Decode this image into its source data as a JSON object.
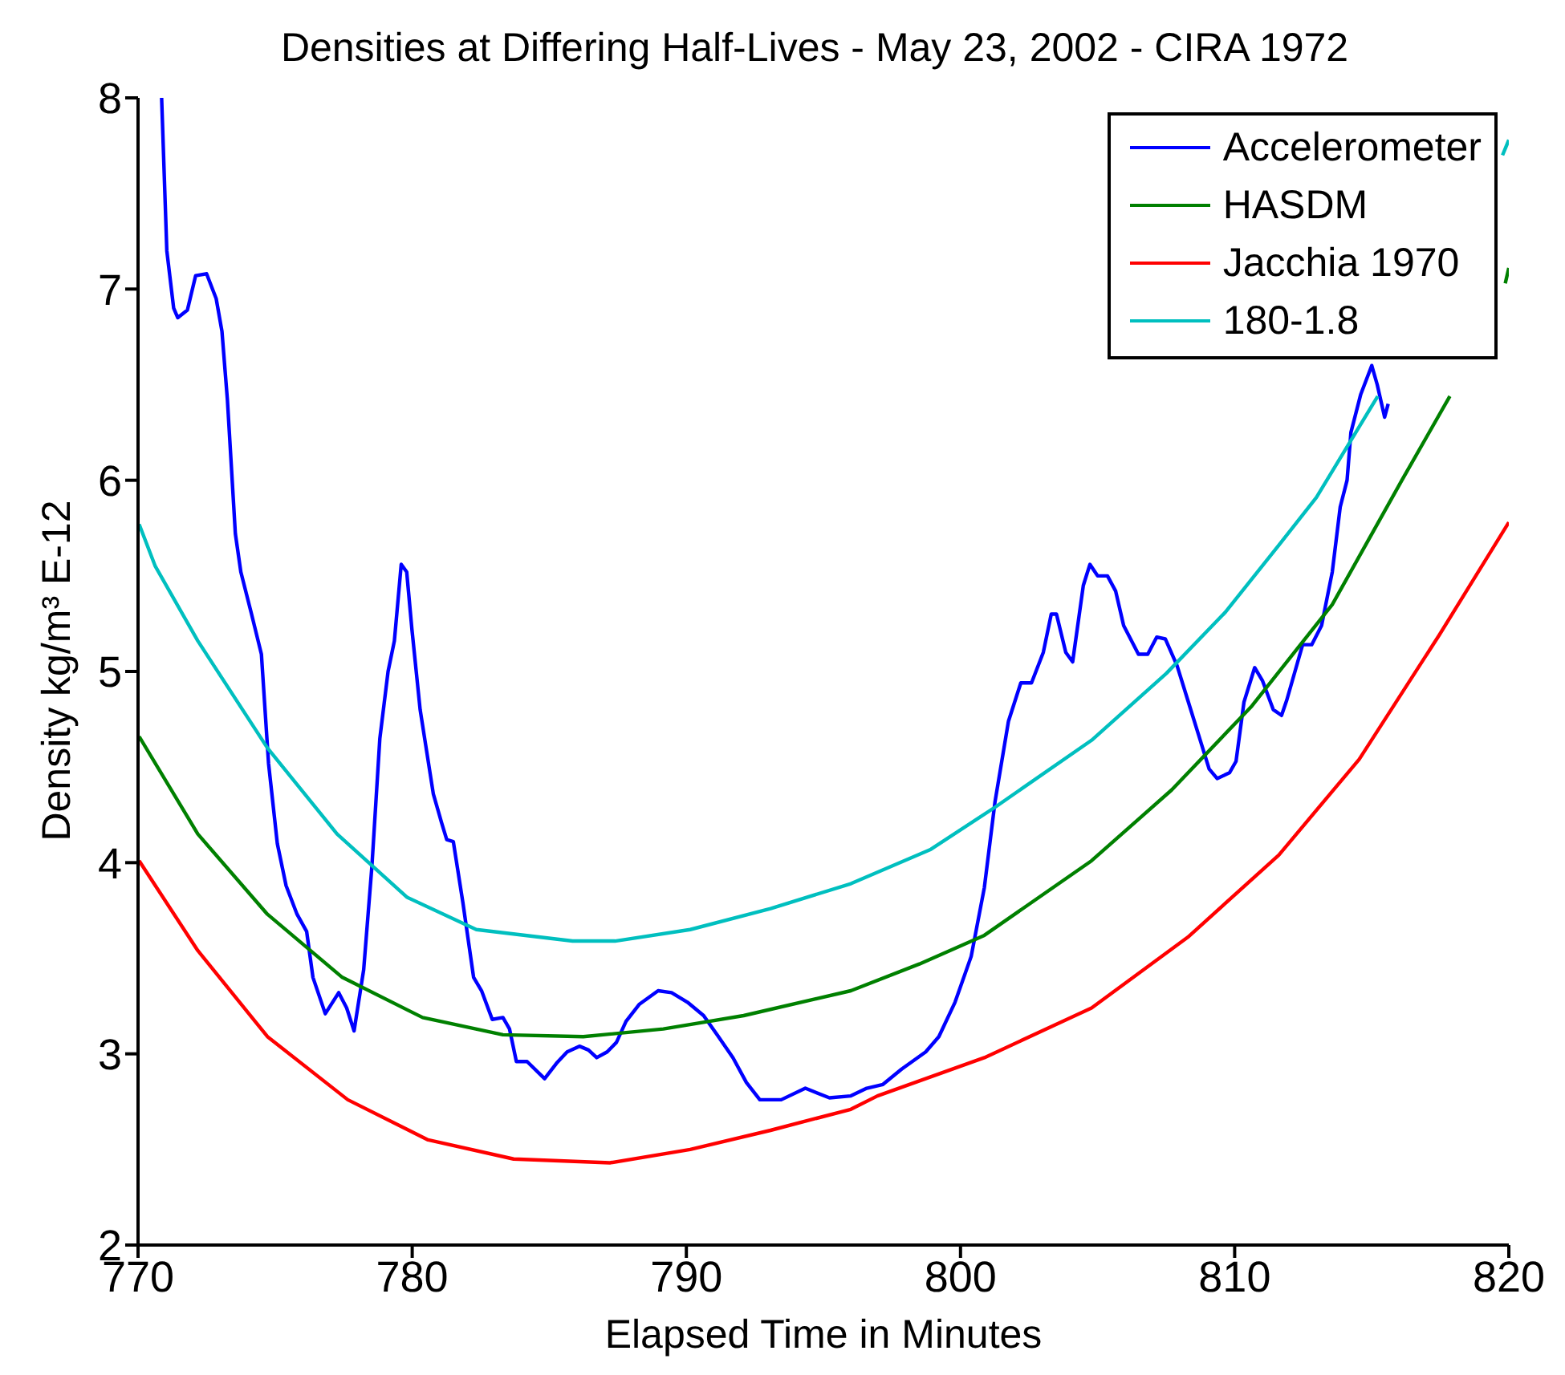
{
  "chart_data": {
    "type": "line",
    "title": "Densities at Differing Half-Lives - May 23, 2002 - CIRA 1972",
    "xlabel": "Elapsed Time in Minutes",
    "ylabel": "Density kg/m³ E-12",
    "xlim": [
      770,
      820
    ],
    "xticks": [
      770,
      780,
      790,
      800,
      810,
      820
    ],
    "ylim": [
      2,
      8
    ],
    "yticks": [
      2,
      3,
      4,
      5,
      6,
      7,
      8
    ],
    "legend": "top right",
    "series": [
      {
        "name": "Accelerometer",
        "color": "#0000ff",
        "x": [
          770.86,
          771.05,
          771.3,
          771.45,
          771.8,
          772.1,
          772.5,
          772.85,
          773.06,
          773.26,
          773.55,
          773.75,
          774.14,
          774.5,
          774.76,
          775.08,
          775.4,
          775.8,
          776.15,
          776.38,
          776.83,
          777.32,
          777.61,
          777.88,
          778.23,
          778.53,
          778.82,
          779.12,
          779.35,
          779.6,
          779.8,
          779.99,
          780.29,
          780.77,
          781.07,
          781.26,
          781.5,
          781.85,
          782.24,
          782.53,
          782.92,
          783.31,
          783.55,
          783.8,
          784.19,
          784.83,
          785.26,
          785.65,
          786.1,
          786.43,
          786.73,
          787.11,
          787.45,
          787.8,
          788.29,
          788.97,
          789.46,
          790.04,
          790.63,
          791.12,
          791.7,
          792.19,
          792.68,
          793.46,
          794.34,
          795.22,
          796.0,
          796.58,
          797.17,
          797.85,
          798.73,
          799.21,
          799.8,
          800.39,
          800.87,
          801.26,
          801.75,
          802.2,
          802.59,
          803.02,
          803.31,
          803.5,
          803.84,
          804.09,
          804.48,
          804.72,
          805.0,
          805.36,
          805.66,
          805.95,
          806.49,
          806.83,
          807.16,
          807.47,
          807.9,
          808.29,
          808.68,
          809.07,
          809.36,
          809.81,
          810.05,
          810.34,
          810.73,
          811.02,
          811.41,
          811.71,
          811.9,
          812.48,
          812.81,
          813.17,
          813.56,
          813.85,
          814.1,
          814.24,
          814.6,
          815.0,
          815.2,
          815.47,
          815.6
        ],
        "values": [
          8.0,
          7.2,
          6.9,
          6.85,
          6.89,
          7.07,
          7.08,
          6.95,
          6.78,
          6.42,
          5.72,
          5.52,
          5.3,
          5.09,
          4.52,
          4.1,
          3.88,
          3.73,
          3.64,
          3.4,
          3.21,
          3.32,
          3.24,
          3.12,
          3.44,
          3.98,
          4.65,
          5.0,
          5.16,
          5.56,
          5.52,
          5.22,
          4.8,
          4.36,
          4.21,
          4.12,
          4.11,
          3.79,
          3.4,
          3.33,
          3.18,
          3.19,
          3.13,
          2.96,
          2.96,
          2.87,
          2.95,
          3.01,
          3.04,
          3.02,
          2.98,
          3.01,
          3.06,
          3.17,
          3.26,
          3.33,
          3.32,
          3.27,
          3.2,
          3.1,
          2.98,
          2.85,
          2.76,
          2.76,
          2.82,
          2.77,
          2.78,
          2.82,
          2.84,
          2.92,
          3.01,
          3.09,
          3.27,
          3.51,
          3.87,
          4.32,
          4.74,
          4.94,
          4.94,
          5.1,
          5.3,
          5.3,
          5.1,
          5.05,
          5.45,
          5.56,
          5.5,
          5.5,
          5.42,
          5.24,
          5.09,
          5.09,
          5.18,
          5.17,
          5.03,
          4.85,
          4.67,
          4.49,
          4.44,
          4.47,
          4.53,
          4.84,
          5.02,
          4.95,
          4.8,
          4.77,
          4.85,
          5.14,
          5.14,
          5.24,
          5.52,
          5.86,
          6.0,
          6.25,
          6.45,
          6.6,
          6.5,
          6.33,
          6.4
        ]
      },
      {
        "name": "HASDM",
        "color": "#008000",
        "x": [
          770.04,
          772.18,
          774.72,
          777.45,
          780.38,
          783.31,
          786.24,
          789.16,
          792.09,
          796.0,
          798.5,
          800.87,
          804.78,
          807.7,
          810.63,
          813.56,
          816.1,
          817.85,
          818.8,
          819.87,
          820
        ],
        "values": [
          4.66,
          4.15,
          3.73,
          3.4,
          3.19,
          3.1,
          3.09,
          3.13,
          3.2,
          3.33,
          3.47,
          3.62,
          4.01,
          4.38,
          4.82,
          5.35,
          6.0,
          6.44,
          null,
          7.03,
          7.11
        ]
      },
      {
        "name": "Jacchia 1970",
        "color": "#ff0000",
        "x": [
          770.04,
          772.18,
          774.72,
          777.65,
          780.58,
          783.7,
          787.21,
          790.14,
          793.07,
          796.0,
          796.97,
          800.87,
          804.78,
          808.29,
          811.61,
          814.54,
          817.46,
          820
        ],
        "values": [
          4.01,
          3.54,
          3.09,
          2.76,
          2.55,
          2.45,
          2.43,
          2.5,
          2.6,
          2.71,
          2.78,
          2.98,
          3.24,
          3.61,
          4.04,
          4.54,
          5.19,
          5.78
        ]
      },
      {
        "name": "180-1.8",
        "color": "#00bfbf",
        "x": [
          770.04,
          770.63,
          772.18,
          774.72,
          777.26,
          779.8,
          782.34,
          785.85,
          787.4,
          790.14,
          793.07,
          796.0,
          798.92,
          801.26,
          804.78,
          807.51,
          809.66,
          811.61,
          812.98,
          815.22,
          817.5,
          819.77,
          820
        ],
        "values": [
          5.77,
          5.55,
          5.16,
          4.6,
          4.15,
          3.82,
          3.65,
          3.59,
          3.59,
          3.65,
          3.76,
          3.89,
          4.07,
          4.29,
          4.64,
          4.99,
          5.31,
          5.66,
          5.91,
          6.44,
          null,
          7.7,
          7.78
        ]
      }
    ]
  }
}
